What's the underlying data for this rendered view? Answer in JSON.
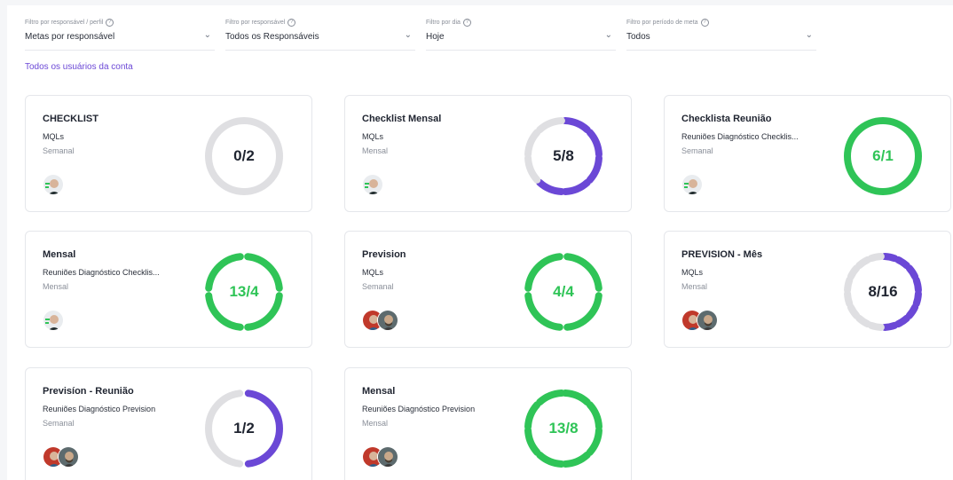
{
  "colors": {
    "green": "#2fc457",
    "purple": "#6b48d6",
    "track": "#dfdfe2"
  },
  "filters": [
    {
      "label": "Filtro por responsável / perfil",
      "value": "Metas por responsável"
    },
    {
      "label": "Filtro por responsável",
      "value": "Todos os Responsáveis"
    },
    {
      "label": "Filtro por dia",
      "value": "Hoje"
    },
    {
      "label": "Filtro por período de meta",
      "value": "Todos"
    }
  ],
  "account_link": "Todos os usuários da conta",
  "cards": [
    {
      "title": "CHECKLIST",
      "metric": "MQLs",
      "period": "Semanal",
      "progress": "0/2",
      "value": 0,
      "goal": 2,
      "segments": 1,
      "color": "purple",
      "avatars": [
        "person-green"
      ]
    },
    {
      "title": "Checklist Mensal",
      "metric": "MQLs",
      "period": "Mensal",
      "progress": "5/8",
      "value": 5,
      "goal": 8,
      "segments": 8,
      "color": "purple",
      "avatars": [
        "person-green"
      ]
    },
    {
      "title": "Checklista Reunião",
      "metric": "Reuniões Diagnóstico Checklis...",
      "period": "Semanal",
      "progress": "6/1",
      "value": 1,
      "goal": 1,
      "segments": 1,
      "color": "green",
      "avatars": [
        "person-green"
      ]
    },
    {
      "title": "Mensal",
      "metric": "Reuniões Diagnóstico Checklis...",
      "period": "Mensal",
      "progress": "13/4",
      "value": 4,
      "goal": 4,
      "segments": 4,
      "color": "green",
      "avatars": [
        "person-green"
      ]
    },
    {
      "title": "Prevision",
      "metric": "MQLs",
      "period": "Semanal",
      "progress": "4/4",
      "value": 4,
      "goal": 4,
      "segments": 4,
      "color": "green",
      "avatars": [
        "person-red",
        "person-beard"
      ]
    },
    {
      "title": "PREVISION - Mês",
      "metric": "MQLs",
      "period": "Mensal",
      "progress": "8/16",
      "value": 8,
      "goal": 16,
      "segments": 16,
      "color": "purple",
      "avatars": [
        "person-red",
        "person-beard"
      ]
    },
    {
      "title": "Previsíon - Reunião",
      "metric": "Reuniões Diagnóstico Prevision",
      "period": "Semanal",
      "progress": "1/2",
      "value": 1,
      "goal": 2,
      "segments": 2,
      "color": "purple",
      "avatars": [
        "person-red",
        "person-beard"
      ]
    },
    {
      "title": "Mensal",
      "metric": "Reuniões Diagnóstico Prevision",
      "period": "Mensal",
      "progress": "13/8",
      "value": 8,
      "goal": 8,
      "segments": 8,
      "color": "green",
      "avatars": [
        "person-red",
        "person-beard"
      ]
    }
  ]
}
